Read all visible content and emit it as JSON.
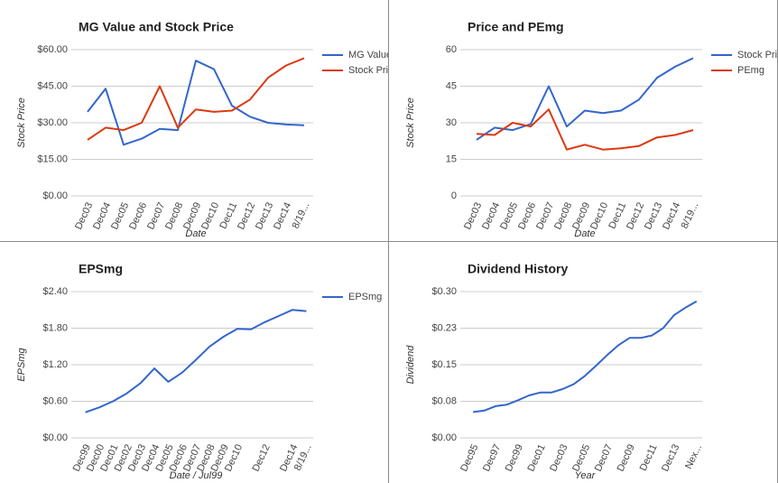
{
  "chart_data": [
    {
      "type": "line",
      "title": "MG Value and Stock Price",
      "categories": [
        "Dec03",
        "Dec04",
        "Dec05",
        "Dec06",
        "Dec07",
        "Dec08",
        "Dec09",
        "Dec10",
        "Dec11",
        "Dec12",
        "Dec13",
        "Dec14",
        "8/19..."
      ],
      "series": [
        {
          "name": "MG Value",
          "color": "#3366cc",
          "values": [
            34.5,
            44,
            21,
            23.5,
            27.5,
            27,
            55.5,
            52,
            37,
            32.5,
            30,
            29.3,
            29
          ]
        },
        {
          "name": "Stock Pri",
          "color": "#dc3912",
          "values": [
            23,
            28,
            27,
            30,
            45,
            28,
            35.5,
            34.5,
            35,
            39.5,
            48.5,
            53.5,
            56.5
          ]
        }
      ],
      "ylim": [
        0,
        60
      ],
      "yticks": [
        {
          "value": 0,
          "label": "$0.00"
        },
        {
          "value": 15,
          "label": "$15.00"
        },
        {
          "value": 30,
          "label": "$30.00"
        },
        {
          "value": 45,
          "label": "$45.00"
        },
        {
          "value": 60,
          "label": "$60.00"
        }
      ],
      "x_label": "Date",
      "y_label": "Stock Price",
      "grid": true,
      "legend": "right"
    },
    {
      "type": "line",
      "title": "Price and PEmg",
      "categories": [
        "Dec03",
        "Dec04",
        "Dec05",
        "Dec06",
        "Dec07",
        "Dec08",
        "Dec09",
        "Dec10",
        "Dec11",
        "Dec12",
        "Dec13",
        "Dec14",
        "8/19..."
      ],
      "series": [
        {
          "name": "Stock Pri",
          "color": "#3366cc",
          "values": [
            23,
            28,
            27,
            29.5,
            45,
            28.5,
            35,
            34,
            35,
            39.5,
            48.5,
            53,
            56.5
          ]
        },
        {
          "name": "PEmg",
          "color": "#dc3912",
          "values": [
            25.5,
            25,
            30,
            28.5,
            35.5,
            19,
            21,
            19,
            19.5,
            20.5,
            24,
            25,
            27
          ]
        }
      ],
      "ylim": [
        0,
        60
      ],
      "yticks": [
        0,
        15,
        30,
        45,
        60
      ],
      "x_label": "Date",
      "y_label": "Stock Price",
      "grid": true,
      "legend": "right"
    },
    {
      "type": "line",
      "title": "EPSmg",
      "categories": [
        "Dec99",
        "Dec00",
        "Dec01",
        "Dec02",
        "Dec03",
        "Dec04",
        "Dec05",
        "Dec06",
        "Dec07",
        "Dec08",
        "Dec09",
        "Dec10",
        null,
        "Dec12",
        null,
        "Dec14",
        "8/19..."
      ],
      "series": [
        {
          "name": "EPSmg",
          "color": "#3366cc",
          "values": [
            0.42,
            0.5,
            0.6,
            0.73,
            0.9,
            1.14,
            0.92,
            1.07,
            1.28,
            1.5,
            1.66,
            1.79,
            1.78,
            1.9,
            2.0,
            2.1,
            2.08
          ]
        }
      ],
      "ylim": [
        0,
        2.4
      ],
      "yticks": [
        {
          "value": 0,
          "label": "$0.00"
        },
        {
          "value": 0.6,
          "label": "$0.60"
        },
        {
          "value": 1.2,
          "label": "$1.20"
        },
        {
          "value": 1.8,
          "label": "$1.80"
        },
        {
          "value": 2.4,
          "label": "$2.40"
        }
      ],
      "x_label": "Date / Jul99",
      "y_label": "EPSmg",
      "grid": true,
      "legend": "right"
    },
    {
      "type": "line",
      "title": "Dividend History",
      "categories": [
        "Dec95",
        null,
        "Dec97",
        null,
        "Dec99",
        null,
        "Dec01",
        null,
        "Dec03",
        null,
        "Dec05",
        null,
        "Dec07",
        null,
        "Dec09",
        null,
        "Dec11",
        null,
        "Dec13",
        null,
        "Nex..."
      ],
      "series": [
        {
          "name": "Dividend",
          "color": "#3366cc",
          "values": [
            0.053,
            0.056,
            0.065,
            0.068,
            0.077,
            0.087,
            0.093,
            0.093,
            0.1,
            0.11,
            0.127,
            0.148,
            0.17,
            0.19,
            0.205,
            0.205,
            0.21,
            0.225,
            0.252,
            0.267,
            0.28
          ]
        }
      ],
      "ylim": [
        0,
        0.3
      ],
      "yticks": [
        {
          "value": 0,
          "label": "$0.00"
        },
        {
          "value": 0.075,
          "label": "$0.08"
        },
        {
          "value": 0.15,
          "label": "$0.15"
        },
        {
          "value": 0.225,
          "label": "$0.23"
        },
        {
          "value": 0.3,
          "label": "$0.30"
        }
      ],
      "x_label": "Year",
      "y_label": "Dividend",
      "grid": true
    }
  ]
}
